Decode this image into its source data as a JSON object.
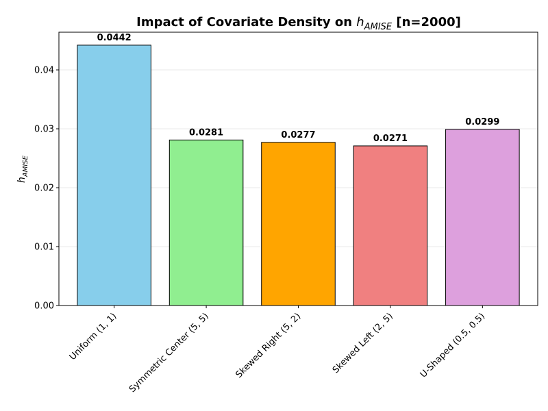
{
  "chart_data": {
    "type": "bar",
    "title": {
      "main": "Impact of Covariate Density on ",
      "symbol": "h",
      "subscript": "AMISE",
      "suffix": " [n=2000]"
    },
    "xlabel": "",
    "ylabel": {
      "symbol": "h",
      "subscript": "AMISE"
    },
    "categories": [
      "Uniform (1, 1)",
      "Symmetric Center (5, 5)",
      "Skewed Right (5, 2)",
      "Skewed Left (2, 5)",
      "U-Shaped (0.5, 0.5)"
    ],
    "values": [
      0.0442,
      0.0281,
      0.0277,
      0.0271,
      0.0299
    ],
    "value_labels": [
      "0.0442",
      "0.0281",
      "0.0277",
      "0.0271",
      "0.0299"
    ],
    "colors": [
      "#87ceeb",
      "#90ee90",
      "#ffa500",
      "#f08080",
      "#dda0dd"
    ],
    "ylim": [
      0,
      0.0464
    ],
    "yticks": [
      0.0,
      0.01,
      0.02,
      0.03,
      0.04
    ],
    "ytick_labels": [
      "0.00",
      "0.01",
      "0.02",
      "0.03",
      "0.04"
    ],
    "grid": "y",
    "legend": "none"
  }
}
